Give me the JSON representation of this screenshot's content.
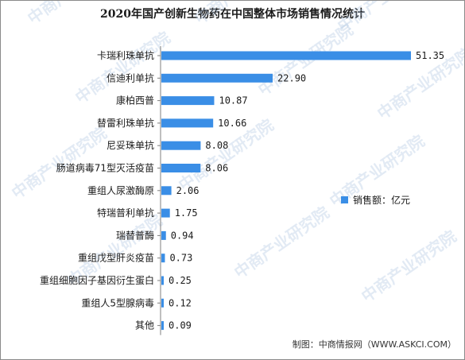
{
  "page": {
    "title": "2020年国产创新生物药在中国整体市场销售情况统计",
    "source": "制图：中商情报网（WWW.ASKCI.COM）",
    "watermark": "中商产业研究院"
  },
  "colors": {
    "bar": "#3a8ee6",
    "axis": "#7f7f7f"
  },
  "chart_data": {
    "type": "bar",
    "orientation": "horizontal",
    "title": "2020年国产创新生物药在中国整体市场销售情况统计",
    "categories": [
      "卡瑞利珠单抗",
      "信迪利单抗",
      "康柏西普",
      "替雷利珠单抗",
      "尼妥珠单抗",
      "肠道病毒71型灭活疫苗",
      "重组人尿激酶原",
      "特瑞普利单抗",
      "瑞替普酶",
      "重组戊型肝炎疫苗",
      "重组细胞因子基因衍生蛋白",
      "重组人5型腺病毒",
      "其他"
    ],
    "series": [
      {
        "name": "销售额：亿元",
        "values": [
          51.35,
          22.9,
          10.87,
          10.66,
          8.08,
          8.06,
          2.06,
          1.75,
          0.94,
          0.73,
          0.25,
          0.12,
          0.09
        ]
      }
    ],
    "value_labels": [
      "51.35",
      "22.90",
      "10.87",
      "10.66",
      "8.08",
      "8.06",
      "2.06",
      "1.75",
      "0.94",
      "0.73",
      "0.25",
      "0.12",
      "0.09"
    ],
    "xlim": [
      0,
      51.35
    ],
    "grid": false,
    "legend_position": "right"
  }
}
